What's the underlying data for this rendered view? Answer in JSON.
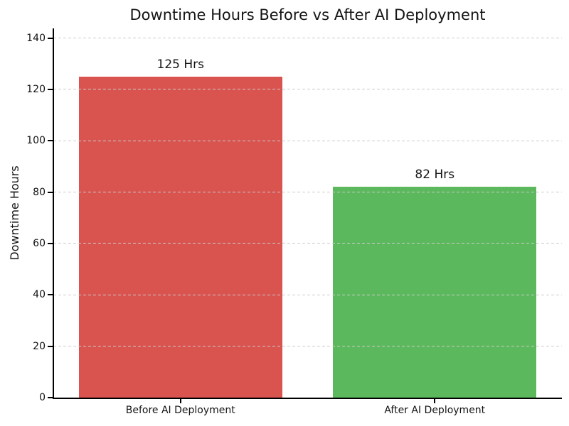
{
  "chart_data": {
    "type": "bar",
    "title": "Downtime Hours Before vs After AI Deployment",
    "xlabel": "",
    "ylabel": "Downtime Hours",
    "categories": [
      "Before AI Deployment",
      "After AI Deployment"
    ],
    "values": [
      125,
      82
    ],
    "bar_value_labels": [
      "125 Hrs",
      "82 Hrs"
    ],
    "bar_colors": [
      "#d9534f",
      "#5cb85c"
    ],
    "yticks": [
      0,
      20,
      40,
      60,
      80,
      100,
      120,
      140
    ],
    "ylim": [
      0,
      143.75
    ],
    "grid": "horizontal-dashed",
    "gridline_color": "#cccccc",
    "legend": "none"
  }
}
